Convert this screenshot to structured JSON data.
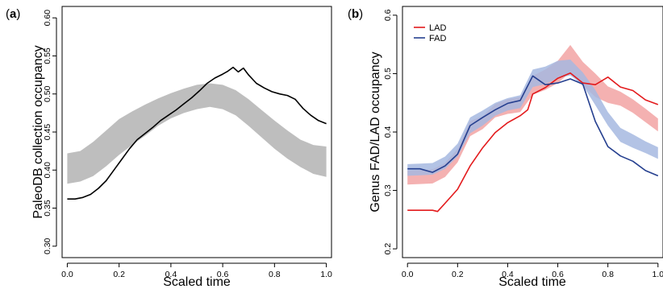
{
  "chart_data": [
    {
      "type": "line",
      "panel_label": "a",
      "xlabel": "Scaled time",
      "ylabel": "PaleoDB collection occupancy",
      "xlim": [
        -0.02,
        1.02
      ],
      "ylim": [
        0.285,
        0.615
      ],
      "xticks": [
        "0.0",
        "0.2",
        "0.4",
        "0.6",
        "0.8",
        "1.0"
      ],
      "yticks": [
        "0.30",
        "0.35",
        "0.40",
        "0.45",
        "0.50",
        "0.55",
        "0.60"
      ],
      "grid": false,
      "legend": "none",
      "bands": [
        {
          "color": "#bebebe",
          "x": [
            0.0,
            0.05,
            0.1,
            0.15,
            0.2,
            0.25,
            0.3,
            0.35,
            0.4,
            0.45,
            0.5,
            0.55,
            0.6,
            0.65,
            0.7,
            0.75,
            0.8,
            0.85,
            0.9,
            0.95,
            1.0
          ],
          "lower": [
            0.382,
            0.385,
            0.392,
            0.405,
            0.42,
            0.433,
            0.445,
            0.458,
            0.468,
            0.475,
            0.48,
            0.483,
            0.48,
            0.472,
            0.458,
            0.443,
            0.428,
            0.415,
            0.404,
            0.395,
            0.391
          ],
          "upper": [
            0.422,
            0.425,
            0.437,
            0.452,
            0.467,
            0.477,
            0.486,
            0.494,
            0.501,
            0.507,
            0.512,
            0.514,
            0.512,
            0.505,
            0.493,
            0.479,
            0.465,
            0.452,
            0.44,
            0.433,
            0.431
          ]
        }
      ],
      "series": [
        {
          "color": "#000000",
          "x": [
            0.0,
            0.03,
            0.06,
            0.09,
            0.12,
            0.15,
            0.18,
            0.21,
            0.24,
            0.27,
            0.3,
            0.33,
            0.36,
            0.39,
            0.42,
            0.45,
            0.48,
            0.51,
            0.54,
            0.57,
            0.6,
            0.62,
            0.64,
            0.66,
            0.68,
            0.7,
            0.73,
            0.76,
            0.79,
            0.82,
            0.85,
            0.88,
            0.91,
            0.94,
            0.97,
            1.0
          ],
          "y": [
            0.362,
            0.362,
            0.364,
            0.368,
            0.376,
            0.386,
            0.4,
            0.414,
            0.428,
            0.44,
            0.448,
            0.456,
            0.465,
            0.472,
            0.479,
            0.487,
            0.495,
            0.504,
            0.514,
            0.521,
            0.526,
            0.53,
            0.535,
            0.529,
            0.534,
            0.525,
            0.514,
            0.508,
            0.503,
            0.5,
            0.498,
            0.493,
            0.481,
            0.472,
            0.465,
            0.461
          ]
        }
      ]
    },
    {
      "type": "line",
      "panel_label": "b",
      "xlabel": "Scaled time",
      "ylabel": "Genus FAD/LAD occupancy",
      "xlim": [
        -0.02,
        1.02
      ],
      "ylim": [
        0.185,
        0.615
      ],
      "xticks": [
        "0.0",
        "0.2",
        "0.4",
        "0.6",
        "0.8",
        "1.0"
      ],
      "yticks": [
        "0.2",
        "0.3",
        "0.4",
        "0.5",
        "0.6"
      ],
      "grid": false,
      "legend": "top-left",
      "bands": [
        {
          "name": "LAD",
          "color": "#f2a3a3",
          "x": [
            0.0,
            0.05,
            0.1,
            0.15,
            0.2,
            0.25,
            0.3,
            0.35,
            0.4,
            0.45,
            0.5,
            0.55,
            0.6,
            0.65,
            0.7,
            0.75,
            0.8,
            0.85,
            0.9,
            0.95,
            1.0
          ],
          "lower": [
            0.31,
            0.311,
            0.312,
            0.323,
            0.348,
            0.393,
            0.405,
            0.425,
            0.431,
            0.434,
            0.464,
            0.472,
            0.484,
            0.502,
            0.48,
            0.46,
            0.45,
            0.445,
            0.433,
            0.417,
            0.401
          ],
          "upper": [
            0.334,
            0.335,
            0.336,
            0.347,
            0.371,
            0.419,
            0.427,
            0.448,
            0.456,
            0.46,
            0.496,
            0.507,
            0.522,
            0.549,
            0.52,
            0.5,
            0.478,
            0.469,
            0.456,
            0.44,
            0.423
          ]
        },
        {
          "name": "FAD",
          "color": "#a6b8e0",
          "x": [
            0.0,
            0.05,
            0.1,
            0.15,
            0.2,
            0.25,
            0.3,
            0.35,
            0.4,
            0.45,
            0.5,
            0.55,
            0.6,
            0.65,
            0.7,
            0.75,
            0.8,
            0.85,
            0.9,
            0.95,
            1.0
          ],
          "lower": [
            0.325,
            0.326,
            0.327,
            0.337,
            0.358,
            0.398,
            0.411,
            0.428,
            0.437,
            0.441,
            0.477,
            0.482,
            0.492,
            0.497,
            0.48,
            0.446,
            0.411,
            0.383,
            0.373,
            0.364,
            0.354
          ],
          "upper": [
            0.345,
            0.346,
            0.347,
            0.358,
            0.38,
            0.425,
            0.437,
            0.45,
            0.458,
            0.463,
            0.507,
            0.512,
            0.522,
            0.524,
            0.502,
            0.472,
            0.434,
            0.407,
            0.396,
            0.384,
            0.374
          ]
        }
      ],
      "series": [
        {
          "name": "LAD",
          "color": "#e31a1c",
          "x": [
            0.0,
            0.05,
            0.1,
            0.12,
            0.15,
            0.2,
            0.25,
            0.3,
            0.35,
            0.4,
            0.45,
            0.48,
            0.5,
            0.55,
            0.6,
            0.65,
            0.7,
            0.75,
            0.8,
            0.85,
            0.9,
            0.95,
            1.0
          ],
          "y": [
            0.266,
            0.266,
            0.266,
            0.264,
            0.278,
            0.302,
            0.342,
            0.373,
            0.399,
            0.416,
            0.428,
            0.438,
            0.465,
            0.476,
            0.492,
            0.501,
            0.484,
            0.481,
            0.494,
            0.477,
            0.471,
            0.455,
            0.447
          ]
        },
        {
          "name": "FAD",
          "color": "#253f8f",
          "x": [
            0.0,
            0.05,
            0.1,
            0.15,
            0.2,
            0.25,
            0.3,
            0.35,
            0.4,
            0.45,
            0.5,
            0.55,
            0.6,
            0.65,
            0.7,
            0.75,
            0.8,
            0.85,
            0.9,
            0.95,
            1.0
          ],
          "y": [
            0.337,
            0.337,
            0.331,
            0.342,
            0.362,
            0.411,
            0.425,
            0.438,
            0.449,
            0.454,
            0.496,
            0.481,
            0.484,
            0.491,
            0.482,
            0.418,
            0.375,
            0.359,
            0.35,
            0.334,
            0.325
          ]
        }
      ]
    }
  ]
}
